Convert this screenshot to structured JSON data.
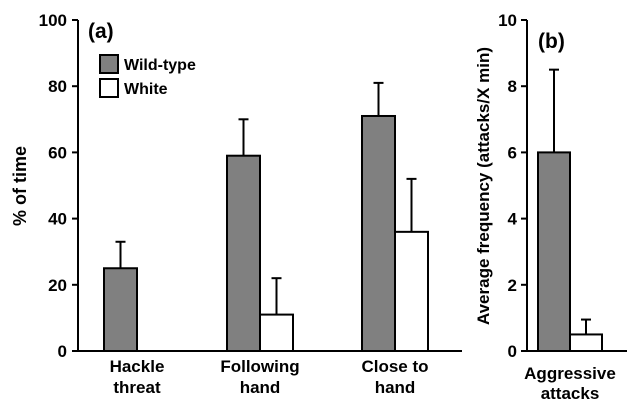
{
  "colors": {
    "wild_type": "#808080",
    "white": "#ffffff",
    "axis": "#000000"
  },
  "chart_data": [
    {
      "type": "bar",
      "panel_label": "(a)",
      "title": "",
      "xlabel": "",
      "ylabel": "% of time",
      "ylim": [
        0,
        100
      ],
      "yticks": [
        0,
        20,
        40,
        60,
        80,
        100
      ],
      "categories": [
        [
          "Hackle",
          "threat"
        ],
        [
          "Following",
          "hand"
        ],
        [
          "Close to",
          "hand"
        ]
      ],
      "series": [
        {
          "name": "Wild-type",
          "values": [
            25,
            59,
            71
          ],
          "errors": [
            8,
            11,
            10
          ]
        },
        {
          "name": "White",
          "values": [
            0,
            11,
            36
          ],
          "errors": [
            0,
            11,
            16
          ]
        }
      ],
      "legend": {
        "placement": "top-left",
        "entries": [
          "Wild-type",
          "White"
        ]
      },
      "grid": false
    },
    {
      "type": "bar",
      "panel_label": "(b)",
      "title": "",
      "xlabel": "",
      "ylabel": "Average frequency (attacks/X min)",
      "ylim": [
        0,
        10
      ],
      "yticks": [
        0,
        2,
        4,
        6,
        8,
        10
      ],
      "categories": [
        [
          "Aggressive",
          "attacks"
        ]
      ],
      "series": [
        {
          "name": "Wild-type",
          "values": [
            6.0
          ],
          "errors": [
            2.5
          ]
        },
        {
          "name": "White",
          "values": [
            0.5
          ],
          "errors": [
            0.45
          ]
        }
      ],
      "grid": false
    }
  ]
}
